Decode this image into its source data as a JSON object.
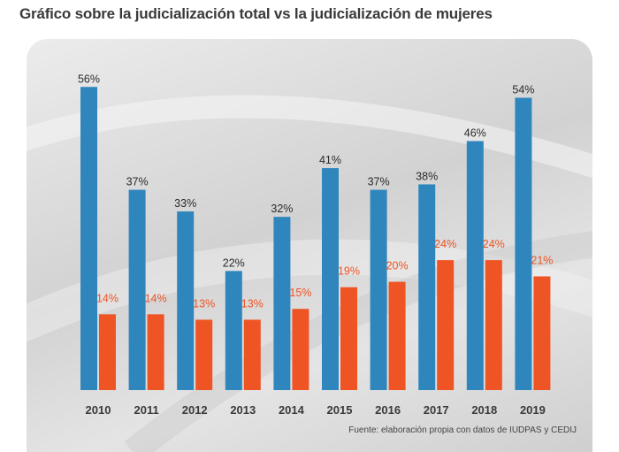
{
  "title": "Gráfico sobre la judicialización total vs la judicialización de mujeres",
  "source": "Fuente: elaboración propia con datos de IUDPAS y CEDIJ",
  "colors": {
    "total": "#2f86bd",
    "mujeres": "#ee5424",
    "total_label": "#2a2a2a",
    "mujeres_label": "#ee5424"
  },
  "chart_data": {
    "type": "bar",
    "categories": [
      "2010",
      "2011",
      "2012",
      "2013",
      "2014",
      "2015",
      "2016",
      "2017",
      "2018",
      "2019"
    ],
    "series": [
      {
        "values": [
          56,
          37,
          33,
          22,
          32,
          41,
          37,
          38,
          46,
          54
        ],
        "labels": [
          "56%",
          "37%",
          "33%",
          "22%",
          "32%",
          "41%",
          "37%",
          "38%",
          "46%",
          "54%"
        ]
      },
      {
        "values": [
          14,
          14,
          13,
          13,
          15,
          19,
          20,
          24,
          24,
          21
        ],
        "labels": [
          "14%",
          "14%",
          "13%",
          "13%",
          "15%",
          "19%",
          "20%",
          "24%",
          "24%",
          "21%"
        ]
      }
    ],
    "ylim": [
      0,
      60
    ],
    "grid": false,
    "legend": false
  }
}
